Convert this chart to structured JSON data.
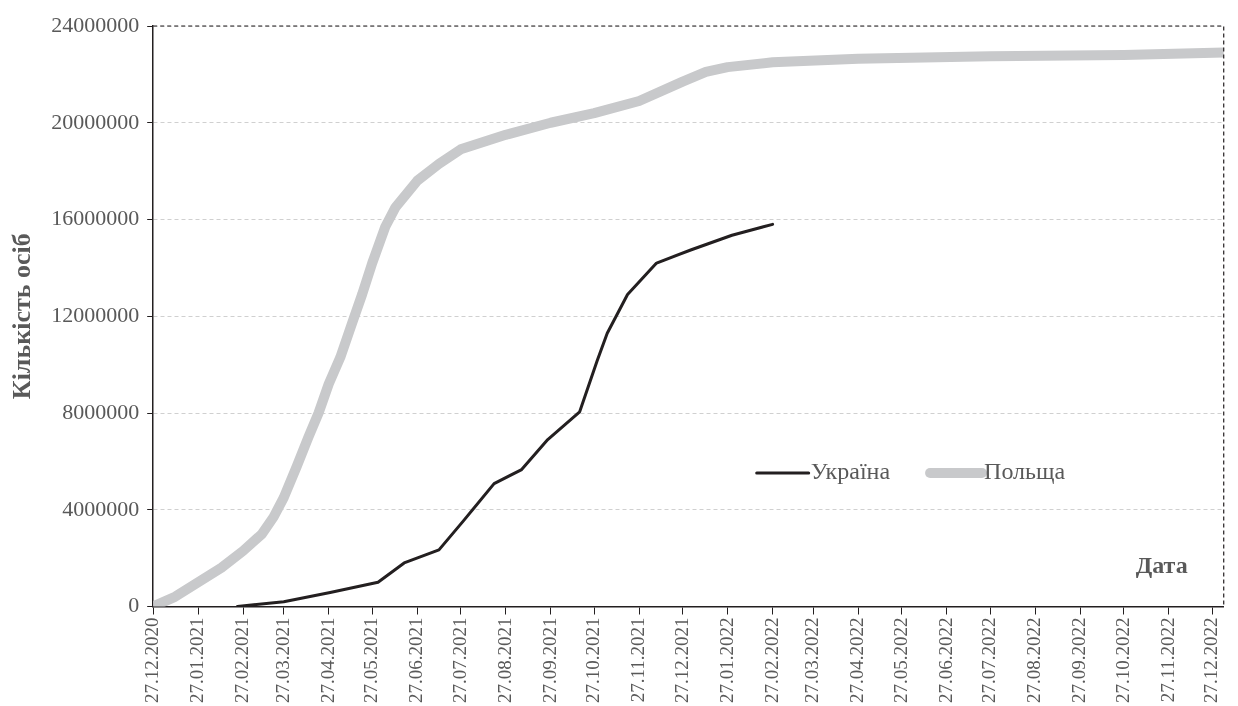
{
  "chart_data": {
    "type": "line",
    "xlabel": "Дата",
    "ylabel": "Кількість осіб",
    "xlim": [
      "2020-12-27",
      "2023-01-04"
    ],
    "xticks": [
      {
        "value": "2020-12-27",
        "label": "27.12.2020"
      },
      {
        "value": "2021-01-27",
        "label": "27.01.2021"
      },
      {
        "value": "2021-02-27",
        "label": "27.02.2021"
      },
      {
        "value": "2021-03-27",
        "label": "27.03.2021"
      },
      {
        "value": "2021-04-27",
        "label": "27.04.2021"
      },
      {
        "value": "2021-05-27",
        "label": "27.05.2021"
      },
      {
        "value": "2021-06-27",
        "label": "27.06.2021"
      },
      {
        "value": "2021-07-27",
        "label": "27.07.2021"
      },
      {
        "value": "2021-08-27",
        "label": "27.08.2021"
      },
      {
        "value": "2021-09-27",
        "label": "27.09.2021"
      },
      {
        "value": "2021-10-27",
        "label": "27.10.2021"
      },
      {
        "value": "2021-11-27",
        "label": "27.11.2021"
      },
      {
        "value": "2021-12-27",
        "label": "27.12.2021"
      },
      {
        "value": "2022-01-27",
        "label": "27.01.2022"
      },
      {
        "value": "2022-02-27",
        "label": "27.02.2022"
      },
      {
        "value": "2022-03-27",
        "label": "27.03.2022"
      },
      {
        "value": "2022-04-27",
        "label": "27.04.2022"
      },
      {
        "value": "2022-05-27",
        "label": "27.05.2022"
      },
      {
        "value": "2022-06-27",
        "label": "27.06.2022"
      },
      {
        "value": "2022-07-27",
        "label": "27.07.2022"
      },
      {
        "value": "2022-08-27",
        "label": "27.08.2022"
      },
      {
        "value": "2022-09-27",
        "label": "27.09.2022"
      },
      {
        "value": "2022-10-27",
        "label": "27.10.2022"
      },
      {
        "value": "2022-11-27",
        "label": "27.11.2022"
      },
      {
        "value": "2022-12-27",
        "label": "27.12.2022"
      }
    ],
    "ylim": [
      0,
      24000000
    ],
    "yticks": [
      0,
      4000000,
      8000000,
      12000000,
      16000000,
      20000000,
      24000000
    ],
    "grid": "y",
    "legend": "right",
    "marker": "none",
    "line_style": "solid",
    "series": [
      {
        "name": "Україна",
        "color": "#231f20",
        "x": [
          "2021-02-23",
          "2021-03-27",
          "2021-04-28",
          "2021-05-31",
          "2021-06-18",
          "2021-07-12",
          "2021-07-29",
          "2021-08-19",
          "2021-09-07",
          "2021-09-25",
          "2021-10-17",
          "2021-10-29",
          "2021-11-05",
          "2021-11-19",
          "2021-12-09",
          "2022-01-02",
          "2022-01-30",
          "2022-02-27"
        ],
        "values": [
          0,
          200000,
          580000,
          1000000,
          1800000,
          2340000,
          3550000,
          5080000,
          5660000,
          6900000,
          8050000,
          10150000,
          11300000,
          12900000,
          14200000,
          14750000,
          15350000,
          15800000
        ]
      },
      {
        "name": "Польща",
        "color": "#c8c9cb",
        "x": [
          "2020-12-27",
          "2021-01-11",
          "2021-01-27",
          "2021-02-12",
          "2021-02-27",
          "2021-03-12",
          "2021-03-20",
          "2021-03-27",
          "2021-04-05",
          "2021-04-13",
          "2021-04-20",
          "2021-04-27",
          "2021-05-05",
          "2021-05-13",
          "2021-05-20",
          "2021-05-27",
          "2021-06-05",
          "2021-06-12",
          "2021-06-27",
          "2021-07-12",
          "2021-07-27",
          "2021-08-27",
          "2021-09-27",
          "2021-10-27",
          "2021-11-27",
          "2021-12-27",
          "2022-01-12",
          "2022-01-27",
          "2022-02-27",
          "2022-04-27",
          "2022-07-27",
          "2022-10-27",
          "2023-01-04"
        ],
        "values": [
          0,
          400000,
          1000000,
          1600000,
          2300000,
          3000000,
          3700000,
          4500000,
          5800000,
          7000000,
          8000000,
          9200000,
          10300000,
          11700000,
          12900000,
          14200000,
          15700000,
          16500000,
          17600000,
          18300000,
          18900000,
          19500000,
          20000000,
          20400000,
          20900000,
          21700000,
          22100000,
          22300000,
          22500000,
          22650000,
          22750000,
          22800000,
          22900000
        ]
      }
    ]
  }
}
